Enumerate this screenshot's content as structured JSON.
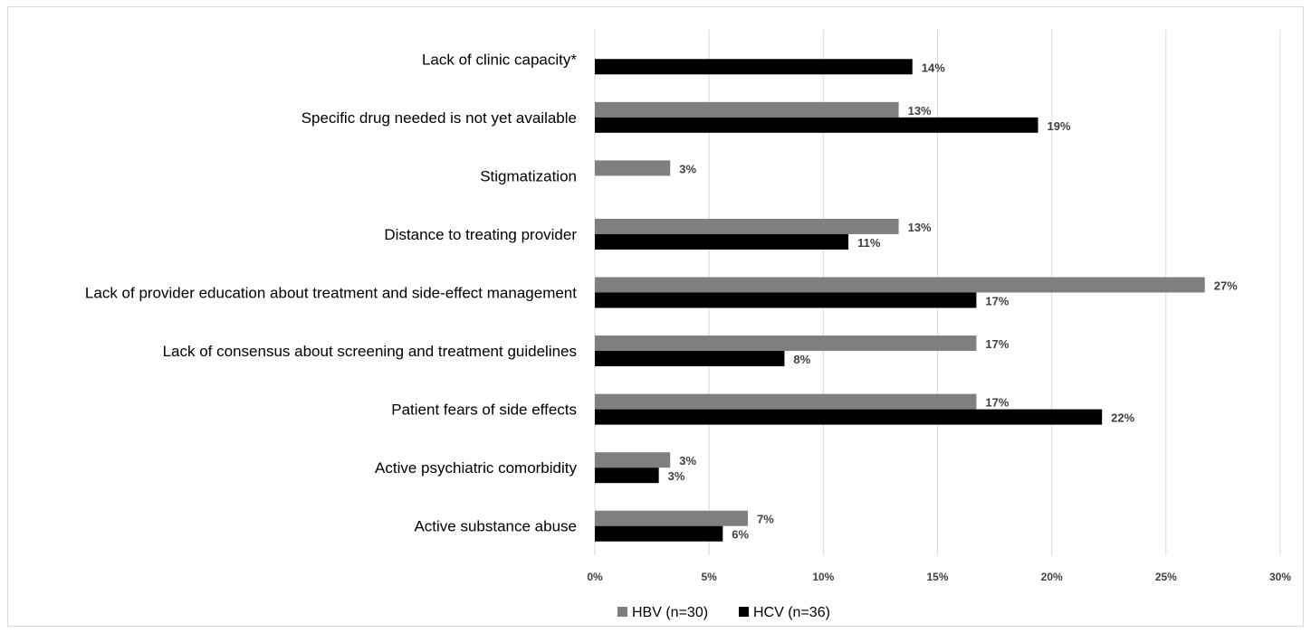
{
  "chart_data": {
    "type": "bar",
    "orientation": "horizontal",
    "categories": [
      "Lack of clinic capacity*",
      "Specific drug needed is not yet available",
      "Stigmatization",
      "Distance to treating provider",
      "Lack of provider education about treatment and side-effect management",
      "Lack of consensus about screening and treatment guidelines",
      "Patient fears of side effects",
      "Active psychiatric comorbidity",
      "Active substance abuse"
    ],
    "series": [
      {
        "name": "HBV (n=30)",
        "color": "#7f7f7f",
        "values": [
          null,
          13.3,
          3.3,
          13.3,
          26.7,
          16.7,
          16.7,
          3.3,
          6.7
        ],
        "labels": [
          "",
          "13%",
          "3%",
          "13%",
          "27%",
          "17%",
          "17%",
          "3%",
          "7%"
        ]
      },
      {
        "name": "HCV (n=36)",
        "color": "#000000",
        "values": [
          13.9,
          19.4,
          null,
          11.1,
          16.7,
          8.3,
          22.2,
          2.8,
          5.6
        ],
        "labels": [
          "14%",
          "19%",
          "",
          "11%",
          "17%",
          "8%",
          "22%",
          "3%",
          "6%"
        ]
      }
    ],
    "xlim": [
      0,
      30
    ],
    "xticks": [
      "0%",
      "5%",
      "10%",
      "15%",
      "20%",
      "25%",
      "30%"
    ],
    "grid": true,
    "legend": "bottom"
  }
}
